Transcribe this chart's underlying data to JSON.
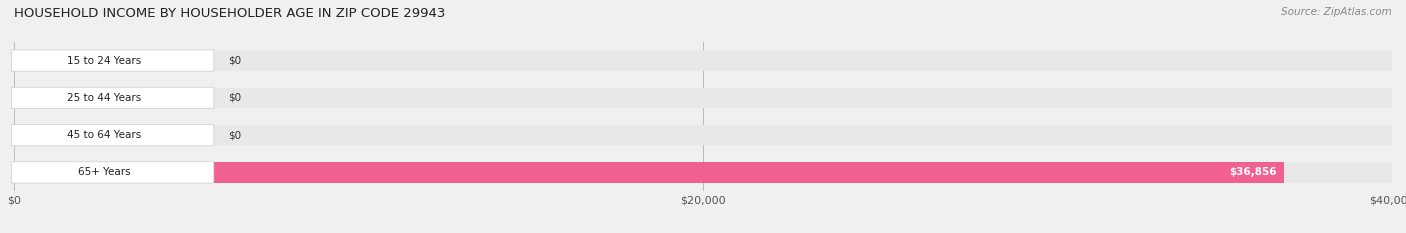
{
  "title": "HOUSEHOLD INCOME BY HOUSEHOLDER AGE IN ZIP CODE 29943",
  "source": "Source: ZipAtlas.com",
  "categories": [
    "15 to 24 Years",
    "25 to 44 Years",
    "45 to 64 Years",
    "65+ Years"
  ],
  "values": [
    0,
    0,
    0,
    36856
  ],
  "bar_colors": [
    "#c9a0c8",
    "#7ecece",
    "#a0a0d8",
    "#f06090"
  ],
  "bar_labels": [
    "$0",
    "$0",
    "$0",
    "$36,856"
  ],
  "xlim": [
    0,
    40000
  ],
  "xticks": [
    0,
    20000,
    40000
  ],
  "xtick_labels": [
    "$0",
    "$20,000",
    "$40,000"
  ],
  "bg_color": "#f0f0f0",
  "bar_bg_color": "#e8e8e8",
  "label_bg_color": "#ffffff",
  "fig_width": 14.06,
  "fig_height": 2.33
}
